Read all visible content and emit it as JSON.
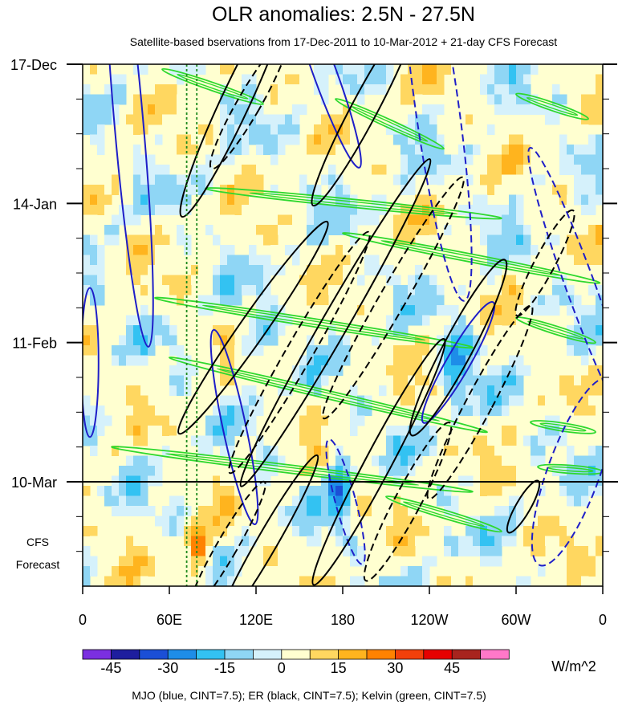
{
  "chart_data": {
    "type": "heatmap",
    "title": "OLR anomalies: 2.5N - 27.5N",
    "subtitle": "Satellite-based bservations from 17-Dec-2011 to 10-Mar-2012 + 21-day CFS Forecast",
    "xlim": [
      0,
      360
    ],
    "x_ticks": [
      {
        "lon": 0,
        "label": "0"
      },
      {
        "lon": 60,
        "label": "60E"
      },
      {
        "lon": 120,
        "label": "120E"
      },
      {
        "lon": 180,
        "label": "180"
      },
      {
        "lon": 240,
        "label": "120W"
      },
      {
        "lon": 300,
        "label": "60W"
      },
      {
        "lon": 360,
        "label": "0"
      }
    ],
    "y_range_days": [
      0,
      105
    ],
    "y_ticks": [
      {
        "day": 0,
        "label": "17-Dec"
      },
      {
        "day": 28,
        "label": "14-Jan"
      },
      {
        "day": 56,
        "label": "11-Feb"
      },
      {
        "day": 84,
        "label": "10-Mar"
      }
    ],
    "forecast_start_day": 84,
    "forecast_label": [
      "CFS",
      "Forecast"
    ],
    "grid": false,
    "colorbar": {
      "unit": "W/m^2",
      "colors": [
        "#7b2fe0",
        "#1e1e9e",
        "#1b4fd6",
        "#1e8de8",
        "#33c2f2",
        "#8fd6f5",
        "#d5f1fb",
        "#ffffd0",
        "#ffd760",
        "#ffb41e",
        "#ff8200",
        "#f2400a",
        "#e60000",
        "#a8241e",
        "#ff78c8"
      ],
      "ticks": [
        {
          "value": -45,
          "label": "-45"
        },
        {
          "value": -30,
          "label": "-30"
        },
        {
          "value": -15,
          "label": "-15"
        },
        {
          "value": 0,
          "label": "0"
        },
        {
          "value": 15,
          "label": "15"
        },
        {
          "value": 30,
          "label": "30"
        },
        {
          "value": 45,
          "label": "45"
        }
      ]
    },
    "contours": {
      "mjo_color": "#1e1ec8",
      "er_color": "#000000",
      "kelvin_color": "#2ed82e",
      "ref_lines_lon": [
        72,
        79
      ],
      "kelvin_bands": [
        {
          "lon1": 55,
          "day1": 1,
          "lon2": 125,
          "day2": 8
        },
        {
          "lon1": 175,
          "day1": 7,
          "lon2": 250,
          "day2": 17
        },
        {
          "lon1": 300,
          "day1": 6,
          "lon2": 350,
          "day2": 11
        },
        {
          "lon1": 85,
          "day1": 25,
          "lon2": 290,
          "day2": 31
        },
        {
          "lon1": 180,
          "day1": 34,
          "lon2": 358,
          "day2": 44
        },
        {
          "lon1": 50,
          "day1": 47,
          "lon2": 270,
          "day2": 57
        },
        {
          "lon1": 300,
          "day1": 51,
          "lon2": 355,
          "day2": 56
        },
        {
          "lon1": 60,
          "day1": 59,
          "lon2": 280,
          "day2": 74
        },
        {
          "lon1": 310,
          "day1": 72,
          "lon2": 355,
          "day2": 74
        },
        {
          "lon1": 20,
          "day1": 77,
          "lon2": 270,
          "day2": 86
        },
        {
          "lon1": 315,
          "day1": 81,
          "lon2": 360,
          "day2": 82
        },
        {
          "lon1": 210,
          "day1": 87,
          "lon2": 290,
          "day2": 94
        }
      ],
      "mjo_ellipses": [
        {
          "lon": 105,
          "day": 73,
          "rx": 8,
          "ry": 20,
          "rot": -12
        },
        {
          "lon": 182,
          "day": 88,
          "rx": 7,
          "ry": 13,
          "rot": -15
        },
        {
          "lon": 260,
          "day": 60,
          "rx": 8,
          "ry": 14,
          "rot": 30
        },
        {
          "lon": 345,
          "day": 45,
          "rx": 10,
          "ry": 30,
          "rot": -20
        },
        {
          "lon": 32,
          "day": 12,
          "rx": 10,
          "ry": 45,
          "rot": -5
        },
        {
          "lon": 245,
          "day": 8,
          "rx": 15,
          "ry": 40,
          "rot": -8
        },
        {
          "lon": 168,
          "day": 2,
          "rx": 8,
          "ry": 20,
          "rot": -20
        },
        {
          "lon": 340,
          "day": 82,
          "rx": 18,
          "ry": 20,
          "rot": 20
        },
        {
          "lon": 5,
          "day": 60,
          "rx": 6,
          "ry": 15,
          "rot": 0
        }
      ],
      "er_solid": [
        {
          "lon": 105,
          "day": 8,
          "rx": 10,
          "ry": 25,
          "rot": 25
        },
        {
          "lon": 195,
          "day": 9,
          "rx": 9,
          "ry": 22,
          "rot": 28
        },
        {
          "lon": 118,
          "day": 53,
          "rx": 9,
          "ry": 26,
          "rot": 35
        },
        {
          "lon": 175,
          "day": 52,
          "rx": 9,
          "ry": 38,
          "rot": 30
        },
        {
          "lon": 260,
          "day": 57,
          "rx": 10,
          "ry": 20,
          "rot": 28
        },
        {
          "lon": 205,
          "day": 80,
          "rx": 9,
          "ry": 28,
          "rot": 28
        },
        {
          "lon": 128,
          "day": 96,
          "rx": 7,
          "ry": 20,
          "rot": 30
        },
        {
          "lon": 305,
          "day": 89,
          "rx": 5,
          "ry": 6,
          "rot": 30
        }
      ],
      "er_dashed": [
        {
          "lon": 115,
          "day": 8,
          "rx": 8,
          "ry": 15,
          "rot": 30
        },
        {
          "lon": 150,
          "day": 58,
          "rx": 9,
          "ry": 28,
          "rot": 30
        },
        {
          "lon": 215,
          "day": 47,
          "rx": 9,
          "ry": 28,
          "rot": 30
        },
        {
          "lon": 275,
          "day": 68,
          "rx": 9,
          "ry": 22,
          "rot": 28
        },
        {
          "lon": 225,
          "day": 88,
          "rx": 9,
          "ry": 18,
          "rot": 28
        },
        {
          "lon": 100,
          "day": 97,
          "rx": 7,
          "ry": 15,
          "rot": 30
        },
        {
          "lon": 320,
          "day": 40,
          "rx": 7,
          "ry": 12,
          "rot": 28
        }
      ]
    }
  },
  "legend_note": "MJO (blue, CINT=7.5); ER (black, CINT=7.5); Kelvin (green, CINT=7.5)"
}
